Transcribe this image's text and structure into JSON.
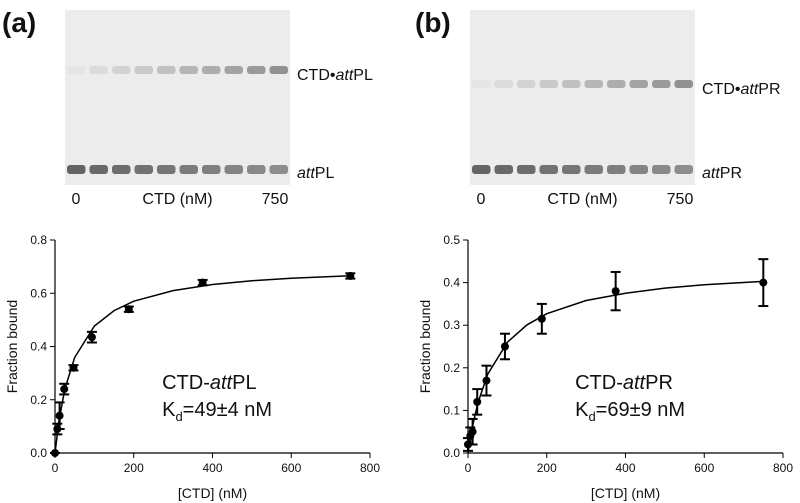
{
  "chart_data": [
    {
      "type": "scatter",
      "panel_label": "(a)",
      "gel": {
        "bound_label": [
          "CTD•",
          "att",
          "PL"
        ],
        "free_label": [
          "att",
          "PL"
        ],
        "lane_labels": [
          "0",
          "CTD (nM)",
          "750"
        ]
      },
      "annotation": [
        "CTD-",
        "att",
        "PL"
      ],
      "kd_label": [
        "K",
        "d",
        "=49±4 nM"
      ],
      "x_label": "[CTD] (nM)",
      "y_label": "Fraction bound",
      "x": [
        0,
        5.9,
        11.7,
        23.4,
        46.9,
        93.8,
        187.5,
        375,
        750
      ],
      "values": [
        0,
        0.09,
        0.14,
        0.24,
        0.32,
        0.435,
        0.54,
        0.64,
        0.665
      ],
      "errors": [
        0,
        0.02,
        0.05,
        0.02,
        0.01,
        0.02,
        0.01,
        0.01,
        0.01
      ],
      "fit": {
        "x": [
          0,
          10,
          25,
          50,
          100,
          150,
          200,
          300,
          400,
          500,
          600,
          750
        ],
        "values": [
          0,
          0.12,
          0.24,
          0.359,
          0.477,
          0.535,
          0.57,
          0.61,
          0.633,
          0.647,
          0.656,
          0.666
        ]
      },
      "color": "#000000",
      "xlim": [
        0,
        800
      ],
      "xticks": [
        0,
        200,
        400,
        600,
        800
      ],
      "ylim": [
        0,
        0.8
      ],
      "yticks": [
        {
          "value": 0,
          "label": "0.0"
        },
        0.2,
        0.4,
        0.6,
        0.8
      ]
    },
    {
      "type": "scatter",
      "panel_label": "(b)",
      "gel": {
        "bound_label": [
          "CTD•",
          "att",
          "PR"
        ],
        "free_label": [
          "att",
          "PR"
        ],
        "lane_labels": [
          "0",
          "CTD (nM)",
          "750"
        ]
      },
      "annotation": [
        "CTD-",
        "att",
        "PR"
      ],
      "kd_label": [
        "K",
        "d",
        "=69±9 nM"
      ],
      "x_label": "[CTD] (nM)",
      "y_label": "Fraction bound",
      "x": [
        0,
        5.9,
        11.7,
        23.4,
        46.9,
        93.8,
        187.5,
        375,
        750
      ],
      "values": [
        0.02,
        0.04,
        0.05,
        0.12,
        0.17,
        0.25,
        0.315,
        0.38,
        0.4
      ],
      "errors": [
        0.015,
        0.02,
        0.03,
        0.03,
        0.035,
        0.03,
        0.035,
        0.045,
        0.055
      ],
      "fit": {
        "x": [
          0,
          10,
          25,
          50,
          100,
          150,
          200,
          300,
          400,
          500,
          600,
          750
        ],
        "values": [
          0,
          0.056,
          0.117,
          0.185,
          0.26,
          0.301,
          0.327,
          0.358,
          0.375,
          0.387,
          0.395,
          0.403
        ]
      },
      "color": "#000000",
      "xlim": [
        0,
        800
      ],
      "xticks": [
        0,
        200,
        400,
        600,
        800
      ],
      "ylim": [
        0,
        0.5
      ],
      "yticks": [
        {
          "value": 0,
          "label": "0.0"
        },
        0.1,
        0.2,
        0.3,
        0.4,
        0.5
      ]
    }
  ]
}
